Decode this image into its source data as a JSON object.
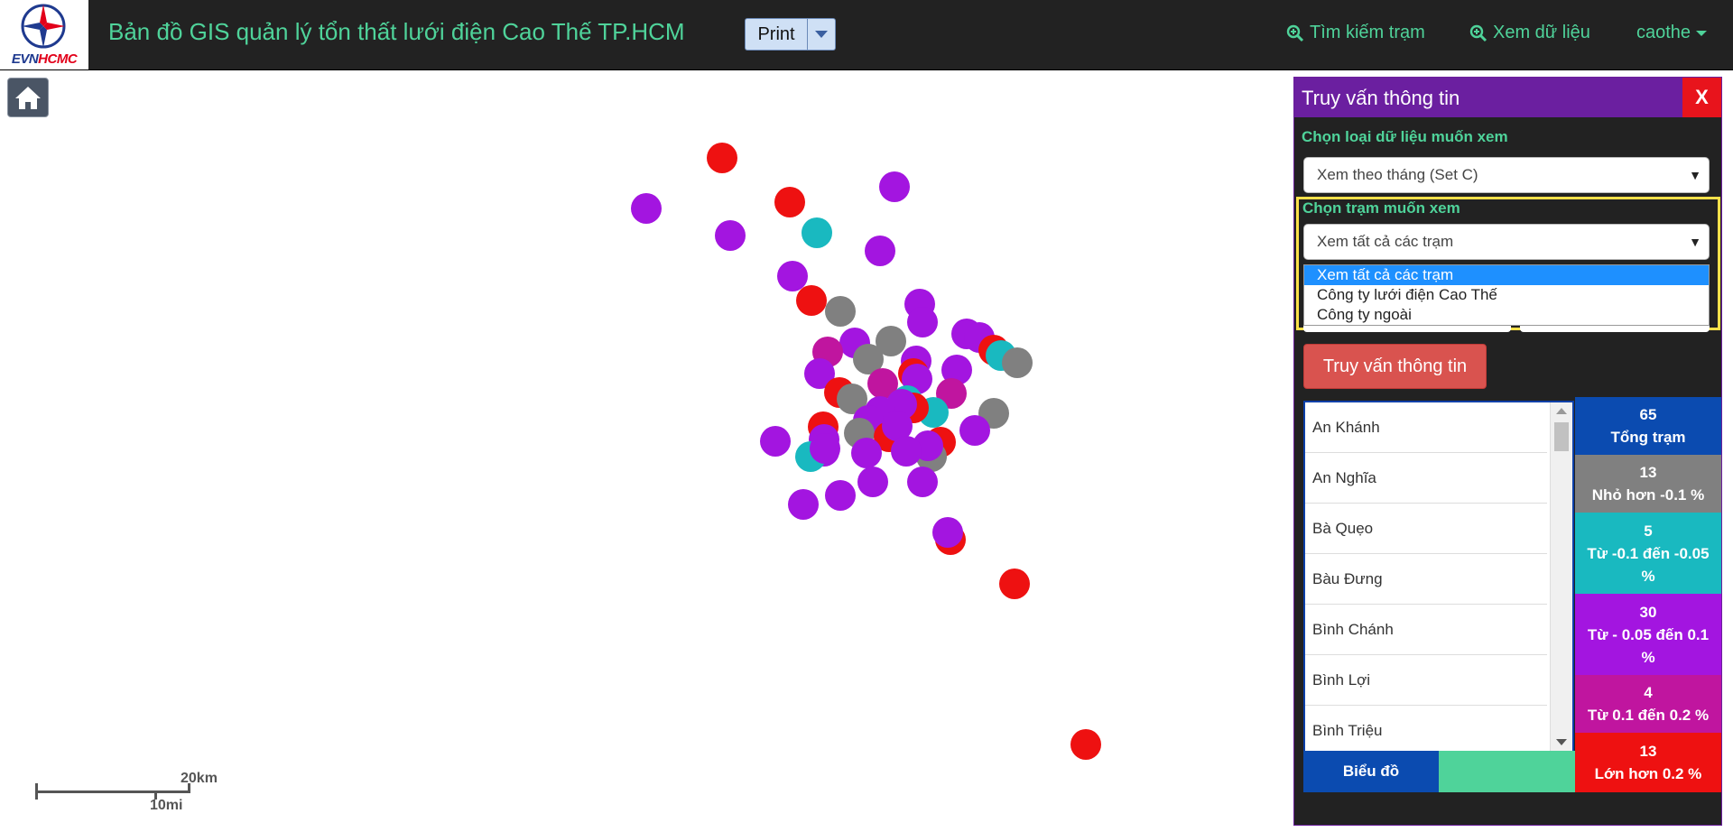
{
  "header": {
    "logo": {
      "evn": "EVN",
      "hcmc": "HCMC"
    },
    "title": "Bản đồ GIS quản lý tổn thất lưới điện Cao Thế TP.HCM",
    "print_label": "Print",
    "nav": {
      "search_station": "Tìm kiếm trạm",
      "view_data": "Xem dữ liệu",
      "user": "caothe"
    }
  },
  "colors": {
    "red": "#ee1111",
    "purple": "#a315e0",
    "magenta": "#c0159f",
    "gray": "#808080",
    "teal": "#19b9c0",
    "accent_green": "#4fd39a",
    "panel_header": "#6b1fa0"
  },
  "map": {
    "scale": {
      "km": "20km",
      "mi": "10mi"
    },
    "stations": [
      {
        "c": "red",
        "x": 800,
        "y": 175
      },
      {
        "c": "purple",
        "x": 716,
        "y": 231
      },
      {
        "c": "red",
        "x": 875,
        "y": 224
      },
      {
        "c": "purple",
        "x": 991,
        "y": 207
      },
      {
        "c": "teal",
        "x": 905,
        "y": 258
      },
      {
        "c": "purple",
        "x": 809,
        "y": 261
      },
      {
        "c": "purple",
        "x": 975,
        "y": 278
      },
      {
        "c": "purple",
        "x": 878,
        "y": 306
      },
      {
        "c": "red",
        "x": 899,
        "y": 333
      },
      {
        "c": "gray",
        "x": 931,
        "y": 345
      },
      {
        "c": "purple",
        "x": 1019,
        "y": 337
      },
      {
        "c": "purple",
        "x": 1022,
        "y": 357
      },
      {
        "c": "gray",
        "x": 987,
        "y": 378
      },
      {
        "c": "purple",
        "x": 947,
        "y": 380
      },
      {
        "c": "magenta",
        "x": 917,
        "y": 390
      },
      {
        "c": "gray",
        "x": 962,
        "y": 398
      },
      {
        "c": "purple",
        "x": 1071,
        "y": 370
      },
      {
        "c": "purple",
        "x": 1085,
        "y": 374
      },
      {
        "c": "red",
        "x": 1101,
        "y": 388
      },
      {
        "c": "teal",
        "x": 1109,
        "y": 394
      },
      {
        "c": "gray",
        "x": 1127,
        "y": 402
      },
      {
        "c": "purple",
        "x": 1015,
        "y": 400
      },
      {
        "c": "purple",
        "x": 1060,
        "y": 410
      },
      {
        "c": "purple",
        "x": 908,
        "y": 414
      },
      {
        "c": "magenta",
        "x": 978,
        "y": 425
      },
      {
        "c": "red",
        "x": 1012,
        "y": 414
      },
      {
        "c": "purple",
        "x": 1016,
        "y": 420
      },
      {
        "c": "red",
        "x": 930,
        "y": 435
      },
      {
        "c": "gray",
        "x": 944,
        "y": 442
      },
      {
        "c": "teal",
        "x": 1005,
        "y": 444
      },
      {
        "c": "magenta",
        "x": 1054,
        "y": 436
      },
      {
        "c": "teal",
        "x": 1034,
        "y": 457
      },
      {
        "c": "red",
        "x": 1012,
        "y": 452
      },
      {
        "c": "purple",
        "x": 999,
        "y": 448
      },
      {
        "c": "purple",
        "x": 975,
        "y": 456
      },
      {
        "c": "purple",
        "x": 962,
        "y": 466
      },
      {
        "c": "gray",
        "x": 1101,
        "y": 458
      },
      {
        "c": "red",
        "x": 912,
        "y": 473
      },
      {
        "c": "gray",
        "x": 952,
        "y": 480
      },
      {
        "c": "purple",
        "x": 859,
        "y": 489
      },
      {
        "c": "purple",
        "x": 913,
        "y": 487
      },
      {
        "c": "red",
        "x": 985,
        "y": 484
      },
      {
        "c": "purple",
        "x": 994,
        "y": 472
      },
      {
        "c": "purple",
        "x": 1080,
        "y": 477
      },
      {
        "c": "purple",
        "x": 913,
        "y": 500
      },
      {
        "c": "red",
        "x": 1042,
        "y": 490
      },
      {
        "c": "gray",
        "x": 1032,
        "y": 506
      },
      {
        "c": "purple",
        "x": 1028,
        "y": 494
      },
      {
        "c": "purple",
        "x": 960,
        "y": 502
      },
      {
        "c": "purple",
        "x": 1004,
        "y": 500
      },
      {
        "c": "teal",
        "x": 898,
        "y": 506
      },
      {
        "c": "purple",
        "x": 914,
        "y": 497
      },
      {
        "c": "purple",
        "x": 967,
        "y": 534
      },
      {
        "c": "purple",
        "x": 1022,
        "y": 534
      },
      {
        "c": "purple",
        "x": 931,
        "y": 549
      },
      {
        "c": "purple",
        "x": 890,
        "y": 559
      },
      {
        "c": "red",
        "x": 1053,
        "y": 598
      },
      {
        "c": "purple",
        "x": 1050,
        "y": 590
      },
      {
        "c": "red",
        "x": 1124,
        "y": 647
      },
      {
        "c": "red",
        "x": 1203,
        "y": 825
      }
    ]
  },
  "panel": {
    "title": "Truy vấn thông tin",
    "close_label": "X",
    "data_type_label": "Chọn loại dữ liệu muốn xem",
    "data_type_value": "Xem theo tháng (Set C)",
    "station_label": "Chọn trạm muốn xem",
    "station_value": "Xem tất cả các trạm",
    "station_options": [
      "Xem tất cả các trạm",
      "Công ty lưới điện Cao Thế",
      "Công ty ngoài"
    ],
    "query_button": "Truy vấn thông tin",
    "station_list": [
      "An Khánh",
      "An Nghĩa",
      "Bà Quẹo",
      "Bàu Đưng",
      "Bình Chánh",
      "Bình Lợi",
      "Bình Triệu"
    ],
    "legend": [
      {
        "count": "65",
        "label": "Tổng trạm",
        "color": "#0b4bb0"
      },
      {
        "count": "13",
        "label": "Nhỏ hơn -0.1 %",
        "color": "#808080"
      },
      {
        "count": "5",
        "label": "Từ -0.1 đến -0.05 %",
        "color": "#19b9c0"
      },
      {
        "count": "30",
        "label": "Từ - 0.05 đến 0.1 %",
        "color": "#a315e0"
      },
      {
        "count": "4",
        "label": "Từ 0.1 đến 0.2 %",
        "color": "#c0159f"
      },
      {
        "count": "13",
        "label": "Lớn hơn 0.2 %",
        "color": "#ee1111"
      }
    ],
    "chart_button": "Biểu đồ"
  }
}
